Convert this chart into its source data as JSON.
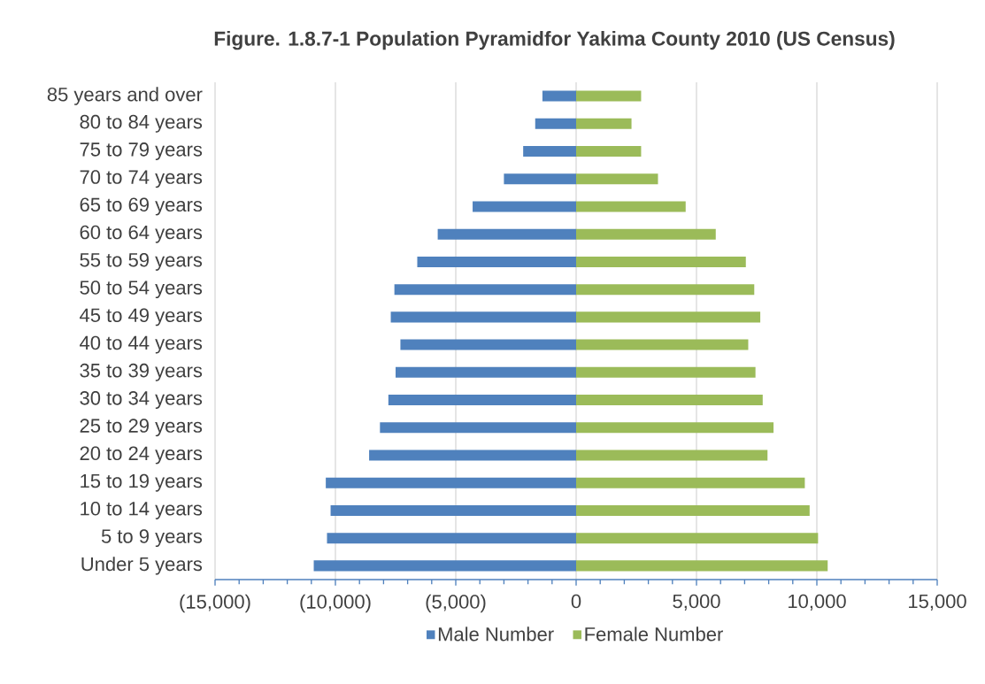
{
  "chart_data": {
    "type": "bar",
    "orientation": "horizontal",
    "title": "Figure. 1.8.7-1 Population Pyramidfor Yakima County 2010 (US Census)",
    "categories": [
      "85 years and over",
      "80 to 84 years",
      "75 to 79 years",
      "70 to 74 years",
      "65 to 69 years",
      "60 to 64 years",
      "55 to 59 years",
      "50 to 54 years",
      "45 to 49 years",
      "40 to 44 years",
      "35 to 39 years",
      "30 to 34 years",
      "25 to 29 years",
      "20 to 24 years",
      "15 to 19 years",
      "10 to 14 years",
      "5 to 9 years",
      "Under 5 years"
    ],
    "series": [
      {
        "name": "Male Number",
        "color": "#4f81bd",
        "values": [
          -1400,
          -1700,
          -2200,
          -3000,
          -4300,
          -5750,
          -6600,
          -7550,
          -7700,
          -7300,
          -7500,
          -7800,
          -8150,
          -8600,
          -10400,
          -10200,
          -10350,
          -10900
        ]
      },
      {
        "name": "Female Number",
        "color": "#9bbb59",
        "values": [
          2700,
          2300,
          2700,
          3400,
          4550,
          5800,
          7050,
          7400,
          7650,
          7150,
          7450,
          7750,
          8200,
          7950,
          9500,
          9700,
          10050,
          10450
        ]
      }
    ],
    "xlim": [
      -15000,
      15000
    ],
    "xticks": [
      {
        "value": -15000,
        "label": "(15,000)"
      },
      {
        "value": -10000,
        "label": "(10,000)"
      },
      {
        "value": -5000,
        "label": "(5,000)"
      },
      0,
      {
        "value": 5000,
        "label": "5,000"
      },
      {
        "value": 10000,
        "label": "10,000"
      },
      {
        "value": 15000,
        "label": "15,000"
      }
    ],
    "grid": "x",
    "legend": "bottom",
    "stacked": true
  }
}
